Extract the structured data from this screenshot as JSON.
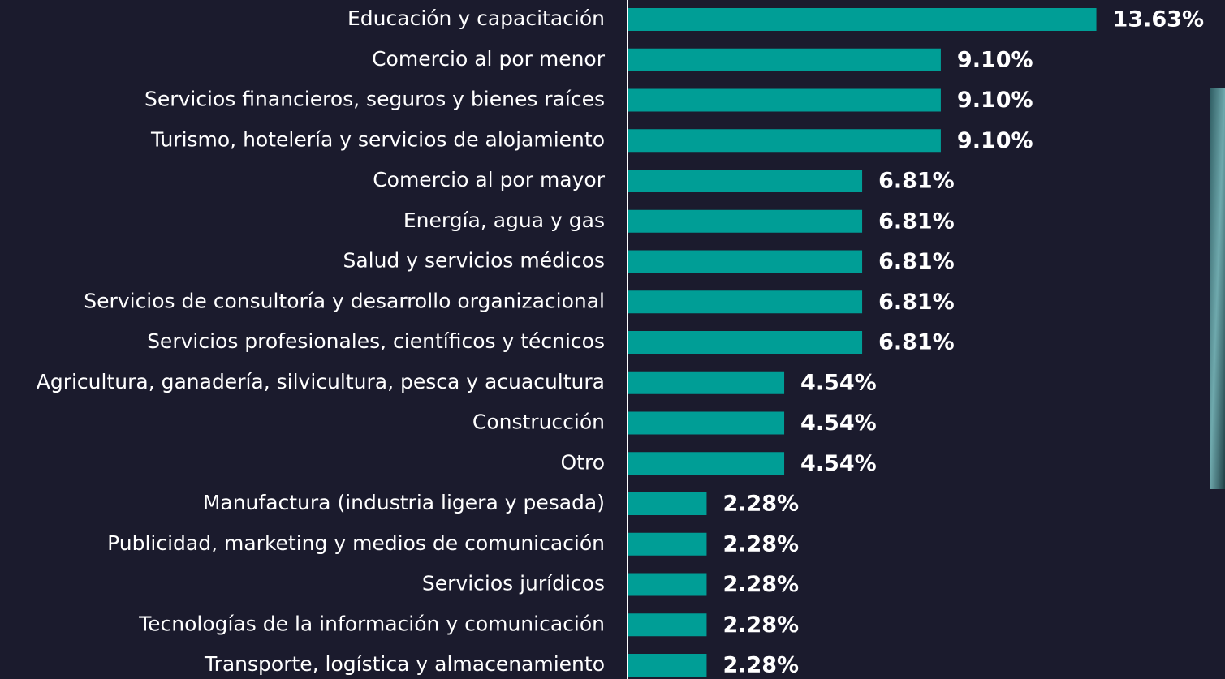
{
  "chart_data": {
    "type": "bar",
    "orientation": "horizontal",
    "categories": [
      "Educación y capacitación",
      "Comercio al por menor",
      "Servicios financieros, seguros y bienes raíces",
      "Turismo, hotelería y servicios de alojamiento",
      "Comercio al por mayor",
      "Energía, agua y gas",
      "Salud y servicios médicos",
      "Servicios de consultoría y desarrollo organizacional",
      "Servicios profesionales, científicos y técnicos",
      "Agricultura, ganadería, silvicultura, pesca y acuacultura",
      "Construcción",
      "Otro",
      "Manufactura (industria ligera y pesada)",
      "Publicidad, marketing y medios de comunicación",
      "Servicios jurídicos",
      "Tecnologías de la información y comunicación",
      "Transporte, logística y almacenamiento"
    ],
    "values": [
      13.63,
      9.1,
      9.1,
      9.1,
      6.81,
      6.81,
      6.81,
      6.81,
      6.81,
      4.54,
      4.54,
      4.54,
      2.28,
      2.28,
      2.28,
      2.28,
      2.28
    ],
    "value_labels": [
      "13.63%",
      "9.10%",
      "9.10%",
      "9.10%",
      "6.81%",
      "6.81%",
      "6.81%",
      "6.81%",
      "6.81%",
      "4.54%",
      "4.54%",
      "4.54%",
      "2.28%",
      "2.28%",
      "2.28%",
      "2.28%",
      "2.28%"
    ],
    "color": "#009e96"
  }
}
